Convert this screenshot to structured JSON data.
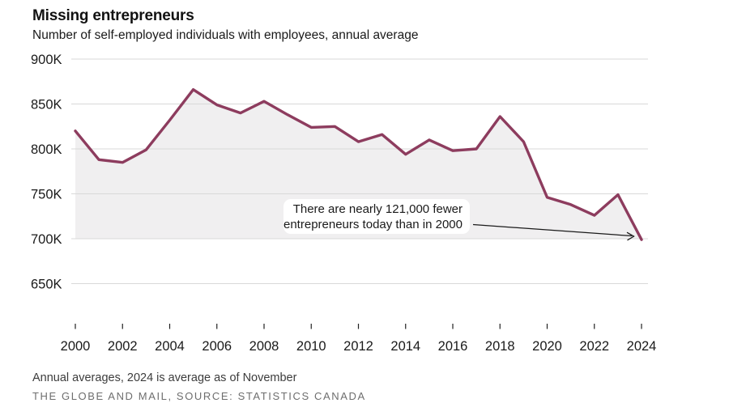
{
  "header": {
    "title": "Missing entrepreneurs",
    "subtitle": "Number of self-employed individuals with employees, annual average"
  },
  "chart_data": {
    "type": "area",
    "title": "Missing entrepreneurs",
    "subtitle": "Number of self-employed individuals with employees, annual average",
    "unit": "thousands",
    "x": [
      2000,
      2001,
      2002,
      2003,
      2004,
      2005,
      2006,
      2007,
      2008,
      2009,
      2010,
      2011,
      2012,
      2013,
      2014,
      2015,
      2016,
      2017,
      2018,
      2019,
      2020,
      2021,
      2022,
      2023,
      2024
    ],
    "values": [
      820,
      788,
      785,
      799,
      832,
      866,
      849,
      840,
      853,
      838,
      824,
      825,
      808,
      816,
      794,
      810,
      798,
      800,
      836,
      808,
      746,
      738,
      726,
      749,
      699
    ],
    "ylim": [
      650,
      900
    ],
    "y_unit": "K",
    "y_ticks": [
      "900K",
      "850K",
      "800K",
      "750K",
      "700K",
      "650K"
    ],
    "y_tick_values": [
      900,
      850,
      800,
      750,
      700,
      650
    ],
    "x_tick_labels": [
      "2000",
      "2002",
      "2004",
      "2006",
      "2008",
      "2010",
      "2012",
      "2014",
      "2016",
      "2018",
      "2020",
      "2022",
      "2024"
    ],
    "x_tick_values": [
      2000,
      2002,
      2004,
      2006,
      2008,
      2010,
      2012,
      2014,
      2016,
      2018,
      2020,
      2022,
      2024
    ],
    "grid": true,
    "legend": false,
    "annotation": {
      "line1": "There are nearly 121,000 fewer",
      "line2": "entrepreneurs today than in 2000"
    },
    "colors": {
      "line": "#8d3c5e",
      "fill": "#f0eff0",
      "grid": "#d9d9d9",
      "tick": "#222222",
      "text": "#1a1a1a",
      "arrow": "#1a1a1a"
    }
  },
  "footer": {
    "note": "Annual averages, 2024 is average as of November",
    "source": "THE GLOBE AND MAIL, SOURCE: STATISTICS CANADA"
  }
}
